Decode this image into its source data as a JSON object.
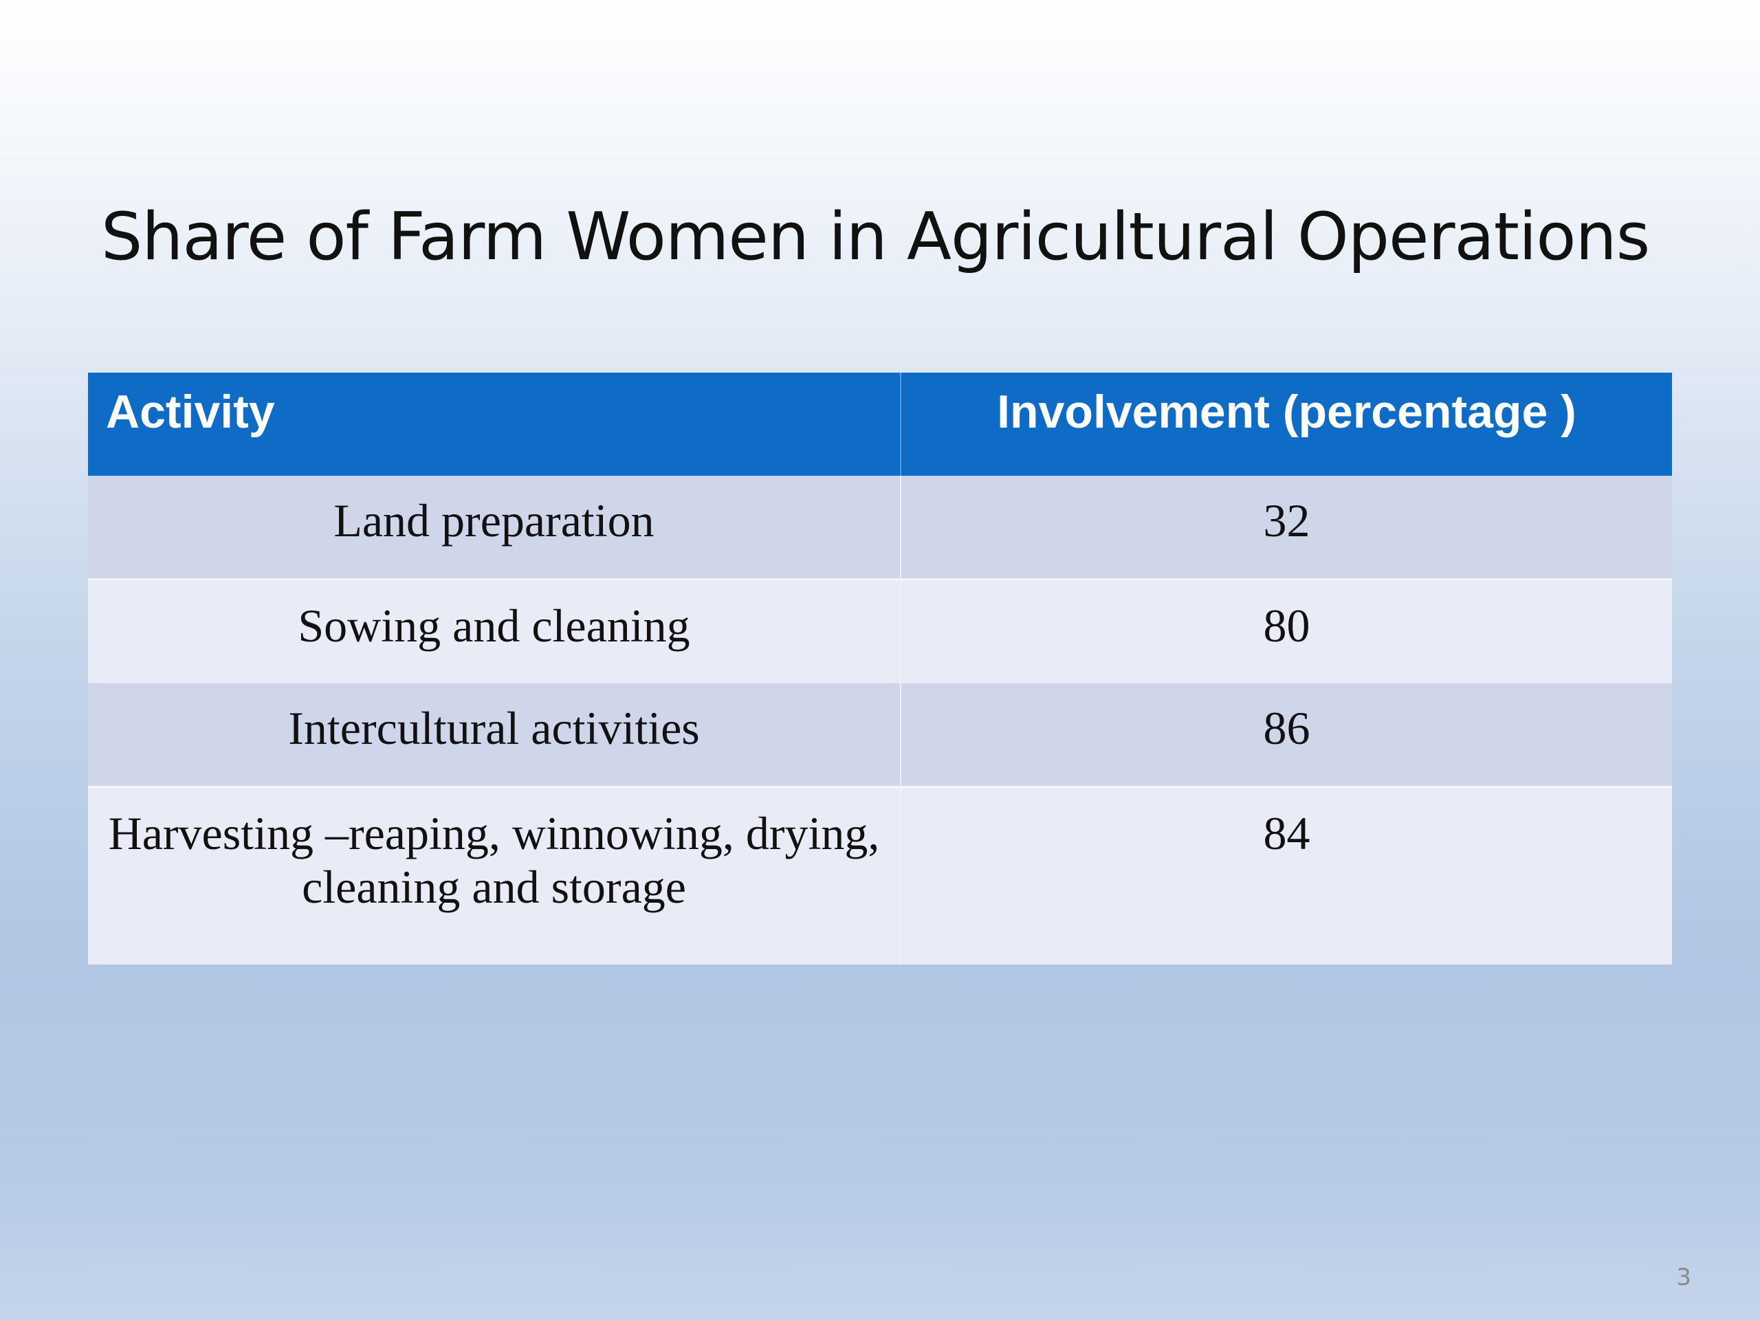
{
  "slide": {
    "title": "Share of Farm Women in Agricultural Operations",
    "page_number": "3"
  },
  "table": {
    "headers": [
      "Activity",
      "Involvement (percentage )"
    ],
    "rows": [
      {
        "activity": "Land preparation",
        "involvement": "32"
      },
      {
        "activity": "Sowing and cleaning",
        "involvement": "80"
      },
      {
        "activity": "Intercultural activities",
        "involvement": "86"
      },
      {
        "activity": "Harvesting –reaping, winnowing, drying, cleaning and storage",
        "involvement": "84"
      }
    ]
  },
  "colors": {
    "header_background": "#0e6bc6",
    "header_text": "#ffffff",
    "row_odd": "#cfd6ea",
    "row_even": "#e9ecf6"
  }
}
